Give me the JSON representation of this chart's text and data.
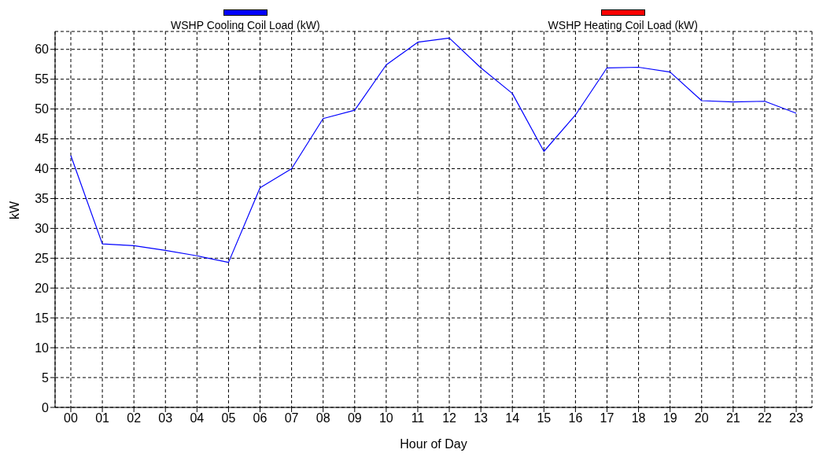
{
  "chart_data": {
    "type": "line",
    "xlabel": "Hour of Day",
    "ylabel": "kW",
    "categories": [
      "00",
      "01",
      "02",
      "03",
      "04",
      "05",
      "06",
      "07",
      "08",
      "09",
      "10",
      "11",
      "12",
      "13",
      "14",
      "15",
      "16",
      "17",
      "18",
      "19",
      "20",
      "21",
      "22",
      "23"
    ],
    "series": [
      {
        "name": "WSHP Cooling Coil Load (kW)",
        "color": "#0000ff",
        "values": [
          42.2,
          27.4,
          27.1,
          26.3,
          25.4,
          24.3,
          36.8,
          40.0,
          48.4,
          49.8,
          57.4,
          61.2,
          61.9,
          56.9,
          52.6,
          42.9,
          49.0,
          56.9,
          57.0,
          56.2,
          51.4,
          51.2,
          51.3,
          49.3
        ]
      },
      {
        "name": "WSHP Heating Coil Load (kW)",
        "color": "#ff0000",
        "values": [
          null,
          null,
          null,
          null,
          null,
          null,
          null,
          null,
          null,
          null,
          null,
          null,
          null,
          null,
          null,
          null,
          null,
          null,
          null,
          null,
          null,
          null,
          null,
          null
        ]
      }
    ],
    "ylim": [
      0,
      63
    ],
    "yticks": [
      0,
      5,
      10,
      15,
      20,
      25,
      30,
      35,
      40,
      45,
      50,
      55,
      60
    ],
    "grid": true,
    "legend": "top",
    "marker": "none",
    "line_style": "solid"
  }
}
